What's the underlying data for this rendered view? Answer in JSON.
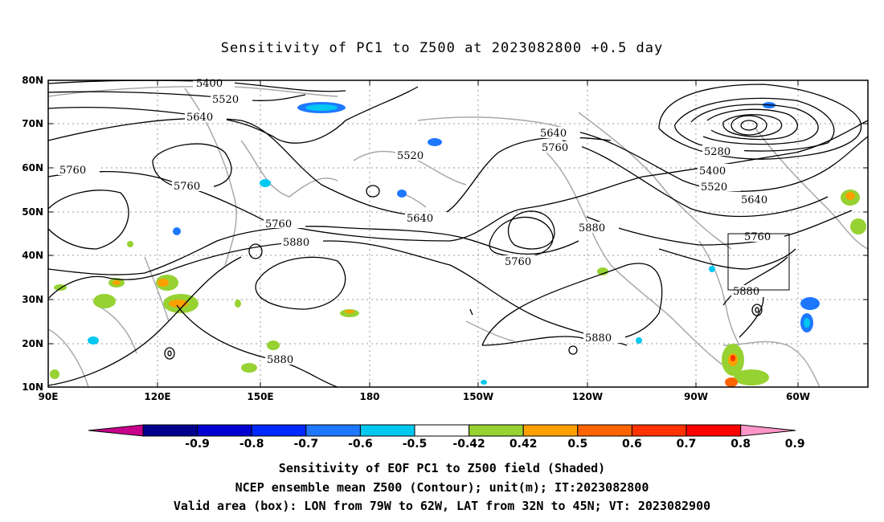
{
  "title": "Sensitivity of PC1 to Z500 at 2023082800 +0.5 day",
  "lat_labels": [
    "80N",
    "70N",
    "60N",
    "50N",
    "40N",
    "30N",
    "20N",
    "10N"
  ],
  "lon_labels": [
    "90E",
    "120E",
    "150E",
    "180",
    "150W",
    "120W",
    "90W",
    "60W"
  ],
  "contour_labels": {
    "c5400a": "5400",
    "c5520a": "5520",
    "c5640a": "5640",
    "c5760a": "5760",
    "c5760b": "5760",
    "c5520b": "5520",
    "c5640b": "5640",
    "c5760c": "5760",
    "c5880a": "5880",
    "c5640c": "5640",
    "c5760d": "5760",
    "c5760e": "5760",
    "c5880b": "5880",
    "c5280": "5280",
    "c5400b": "5400",
    "c5520c": "5520",
    "c5640d": "5640",
    "c5760f": "5760",
    "c5880c": "5880",
    "c5880d": "5880",
    "c5880e": "5880"
  },
  "colorbar": {
    "labels": [
      "-0.9",
      "-0.8",
      "-0.7",
      "-0.6",
      "-0.5",
      "-0.42",
      "0.42",
      "0.5",
      "0.6",
      "0.7",
      "0.8",
      "0.9"
    ],
    "colors": [
      "#c8008c",
      "#00008c",
      "#0000d2",
      "#0028ff",
      "#1e78ff",
      "#00c8f0",
      "#ffffff",
      "#96d232",
      "#ffa000",
      "#ff6400",
      "#ff3200",
      "#ff0000",
      "#ff96c8"
    ]
  },
  "box": {
    "lon_min": "79W",
    "lon_max": "62W",
    "lat_min": "32N",
    "lat_max": "45N"
  },
  "captions": {
    "line1": "Sensitivity of EOF PC1 to Z500 field (Shaded)",
    "line2": "NCEP ensemble mean Z500 (Contour); unit(m); IT:2023082800",
    "line3": "Valid area (box): LON from 79W to 62W, LAT from 32N to 45N; VT: 2023082900"
  }
}
